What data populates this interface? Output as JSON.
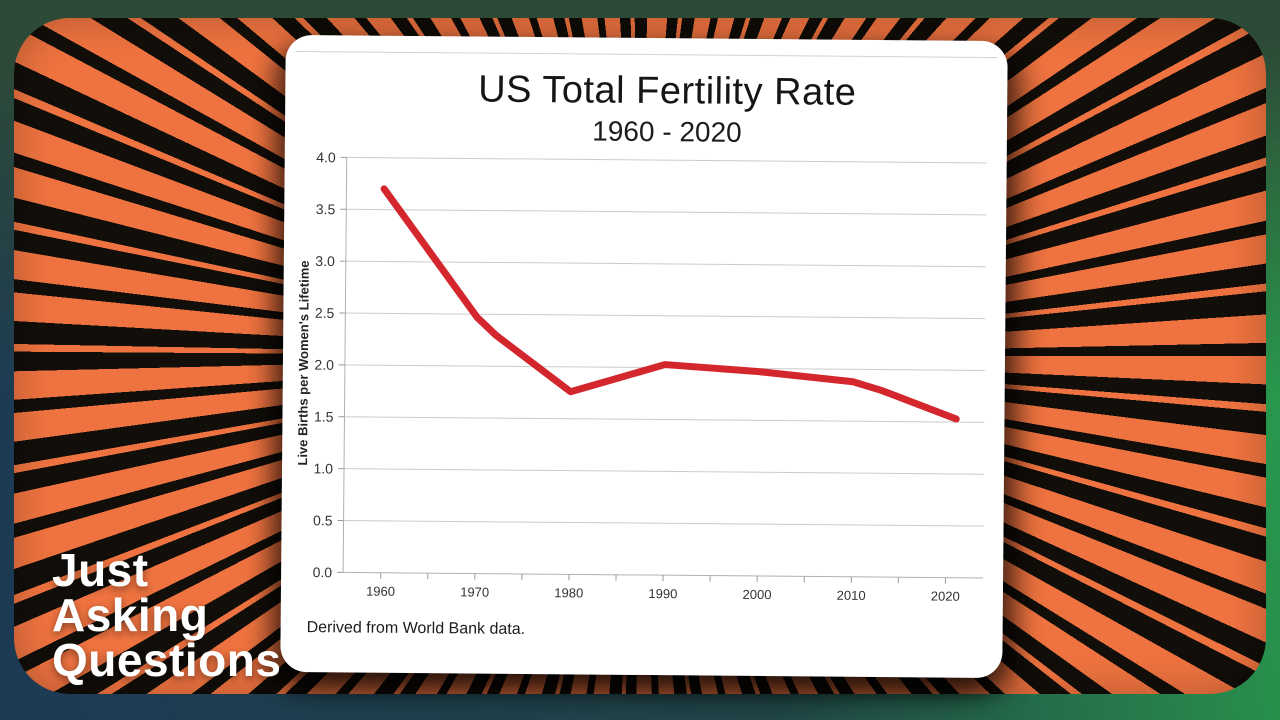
{
  "branding": {
    "lines": [
      "Just",
      "Asking",
      "Questions"
    ],
    "text_color": "#ffffff"
  },
  "frame": {
    "top_green": "#2d4a36",
    "bottom_left_blue": "#1d3a54",
    "bottom_right_green": "#2aa24e",
    "burst_orange": "#ee7340",
    "burst_black": "#120e0a",
    "card_color": "#ffffff"
  },
  "chart_data": {
    "type": "line",
    "title": "US Total Fertility Rate",
    "subtitle": "1960 - 2020",
    "ylabel": "Live Births per Women's Lifetime",
    "caption": "Derived from World Bank data.",
    "xlim": [
      1956,
      2024
    ],
    "ylim": [
      0,
      4.0
    ],
    "ytick_step": 0.5,
    "xticks_labeled": [
      1960,
      1970,
      1980,
      1990,
      2000,
      2010,
      2020
    ],
    "xticks_minor_step": 5,
    "grid": "horizontal-only",
    "legend": "none",
    "line_color": "#d4262d",
    "series": [
      {
        "name": "US total fertility rate",
        "x": [
          1960,
          1970,
          1972,
          1980,
          1990,
          2000,
          2010,
          2013,
          2021
        ],
        "y": [
          3.7,
          2.47,
          2.3,
          1.76,
          2.03,
          1.97,
          1.88,
          1.8,
          1.53
        ]
      }
    ]
  }
}
